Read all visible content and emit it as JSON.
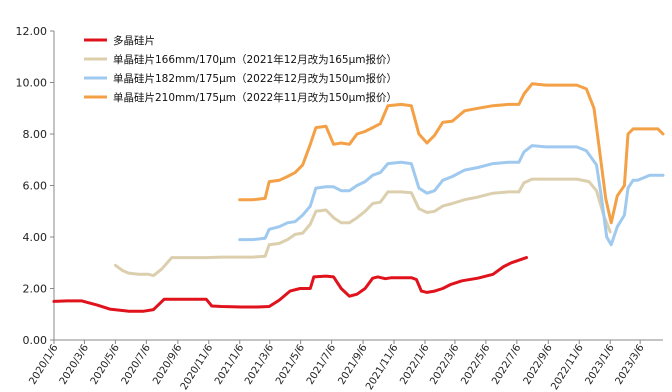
{
  "chart_data": {
    "type": "line",
    "title": "",
    "xlabel": "",
    "ylabel": "",
    "ylim": [
      0,
      12
    ],
    "yticks": [
      "0.00",
      "2.00",
      "4.00",
      "6.00",
      "8.00",
      "10.00",
      "12.00"
    ],
    "grid": false,
    "legend_position": "top-left",
    "x_tick_labels": [
      "2020/1/6",
      "2020/3/6",
      "2020/5/6",
      "2020/7/6",
      "2020/9/6",
      "2020/11/6",
      "2021/1/6",
      "2021/3/6",
      "2021/5/6",
      "2021/7/6",
      "2021/9/6",
      "2021/11/6",
      "2022/1/6",
      "2022/3/6",
      "2022/5/6",
      "2022/7/6",
      "2022/9/6",
      "2022/11/6",
      "2023/1/6",
      "2023/3/6"
    ],
    "x_start": "2020/1/6",
    "x_end": "2023/4/20",
    "series": [
      {
        "name": "多晶硅片",
        "color": "#e0121c",
        "points": [
          [
            "2020/1/6",
            1.5
          ],
          [
            "2020/2/1",
            1.52
          ],
          [
            "2020/3/1",
            1.52
          ],
          [
            "2020/4/1",
            1.35
          ],
          [
            "2020/4/25",
            1.2
          ],
          [
            "2020/6/1",
            1.12
          ],
          [
            "2020/7/1",
            1.12
          ],
          [
            "2020/7/20",
            1.18
          ],
          [
            "2020/8/10",
            1.58
          ],
          [
            "2020/9/1",
            1.58
          ],
          [
            "2020/10/1",
            1.58
          ],
          [
            "2020/11/1",
            1.58
          ],
          [
            "2020/11/12",
            1.32
          ],
          [
            "2020/12/1",
            1.3
          ],
          [
            "2021/1/10",
            1.28
          ],
          [
            "2021/2/10",
            1.28
          ],
          [
            "2021/3/5",
            1.3
          ],
          [
            "2021/3/25",
            1.55
          ],
          [
            "2021/4/15",
            1.9
          ],
          [
            "2021/5/5",
            2.0
          ],
          [
            "2021/5/25",
            2.0
          ],
          [
            "2021/6/1",
            2.45
          ],
          [
            "2021/6/25",
            2.48
          ],
          [
            "2021/7/10",
            2.45
          ],
          [
            "2021/7/25",
            2.0
          ],
          [
            "2021/8/10",
            1.7
          ],
          [
            "2021/8/25",
            1.78
          ],
          [
            "2021/9/10",
            2.0
          ],
          [
            "2021/9/25",
            2.4
          ],
          [
            "2021/10/5",
            2.45
          ],
          [
            "2021/10/20",
            2.38
          ],
          [
            "2021/11/1",
            2.42
          ],
          [
            "2021/11/20",
            2.42
          ],
          [
            "2021/12/10",
            2.42
          ],
          [
            "2021/12/20",
            2.35
          ],
          [
            "2021/12/30",
            1.9
          ],
          [
            "2022/1/10",
            1.85
          ],
          [
            "2022/1/25",
            1.9
          ],
          [
            "2022/2/10",
            2.0
          ],
          [
            "2022/2/25",
            2.15
          ],
          [
            "2022/3/20",
            2.3
          ],
          [
            "2022/4/20",
            2.4
          ],
          [
            "2022/5/20",
            2.55
          ],
          [
            "2022/6/10",
            2.85
          ],
          [
            "2022/6/25",
            3.0
          ],
          [
            "2022/7/10",
            3.1
          ],
          [
            "2022/7/25",
            3.2
          ]
        ]
      },
      {
        "name": "单晶硅片166mm/170μm（2021年12月改为165μm报价）",
        "color": "#dccfae",
        "points": [
          [
            "2020/5/6",
            2.9
          ],
          [
            "2020/5/20",
            2.7
          ],
          [
            "2020/6/1",
            2.6
          ],
          [
            "2020/6/20",
            2.55
          ],
          [
            "2020/7/10",
            2.55
          ],
          [
            "2020/7/20",
            2.5
          ],
          [
            "2020/8/5",
            2.75
          ],
          [
            "2020/8/25",
            3.2
          ],
          [
            "2020/10/1",
            3.2
          ],
          [
            "2020/11/1",
            3.2
          ],
          [
            "2020/12/1",
            3.22
          ],
          [
            "2021/1/1",
            3.22
          ],
          [
            "2021/2/1",
            3.22
          ],
          [
            "2021/2/25",
            3.25
          ],
          [
            "2021/3/5",
            3.7
          ],
          [
            "2021/3/25",
            3.75
          ],
          [
            "2021/4/10",
            3.9
          ],
          [
            "2021/4/25",
            4.1
          ],
          [
            "2021/5/10",
            4.15
          ],
          [
            "2021/5/25",
            4.5
          ],
          [
            "2021/6/5",
            5.0
          ],
          [
            "2021/6/25",
            5.05
          ],
          [
            "2021/7/10",
            4.75
          ],
          [
            "2021/7/25",
            4.55
          ],
          [
            "2021/8/10",
            4.55
          ],
          [
            "2021/8/25",
            4.75
          ],
          [
            "2021/9/10",
            5.0
          ],
          [
            "2021/9/25",
            5.3
          ],
          [
            "2021/10/10",
            5.35
          ],
          [
            "2021/10/25",
            5.75
          ],
          [
            "2021/11/20",
            5.75
          ],
          [
            "2021/12/10",
            5.72
          ],
          [
            "2021/12/25",
            5.1
          ],
          [
            "2022/1/10",
            4.95
          ],
          [
            "2022/1/25",
            5.0
          ],
          [
            "2022/2/10",
            5.2
          ],
          [
            "2022/3/1",
            5.3
          ],
          [
            "2022/3/25",
            5.45
          ],
          [
            "2022/4/20",
            5.55
          ],
          [
            "2022/5/20",
            5.7
          ],
          [
            "2022/6/20",
            5.75
          ],
          [
            "2022/7/10",
            5.75
          ],
          [
            "2022/7/20",
            6.1
          ],
          [
            "2022/8/5",
            6.25
          ],
          [
            "2022/9/1",
            6.25
          ],
          [
            "2022/10/1",
            6.25
          ],
          [
            "2022/11/1",
            6.25
          ],
          [
            "2022/11/25",
            6.15
          ],
          [
            "2022/12/10",
            5.8
          ],
          [
            "2022/12/25",
            4.8
          ],
          [
            "2023/1/6",
            4.2
          ]
        ]
      },
      {
        "name": "单晶硅片182mm/175μm（2022年12月改为150μm报价）",
        "color": "#9fc9ee",
        "points": [
          [
            "2021/1/6",
            3.9
          ],
          [
            "2021/2/1",
            3.9
          ],
          [
            "2021/2/25",
            3.95
          ],
          [
            "2021/3/5",
            4.3
          ],
          [
            "2021/3/25",
            4.4
          ],
          [
            "2021/4/10",
            4.55
          ],
          [
            "2021/4/25",
            4.6
          ],
          [
            "2021/5/10",
            4.85
          ],
          [
            "2021/5/25",
            5.2
          ],
          [
            "2021/6/5",
            5.9
          ],
          [
            "2021/6/25",
            5.95
          ],
          [
            "2021/7/10",
            5.95
          ],
          [
            "2021/7/25",
            5.8
          ],
          [
            "2021/8/10",
            5.8
          ],
          [
            "2021/8/25",
            6.0
          ],
          [
            "2021/9/10",
            6.15
          ],
          [
            "2021/9/25",
            6.4
          ],
          [
            "2021/10/10",
            6.5
          ],
          [
            "2021/10/25",
            6.85
          ],
          [
            "2021/11/20",
            6.9
          ],
          [
            "2021/12/10",
            6.85
          ],
          [
            "2021/12/25",
            5.9
          ],
          [
            "2022/1/10",
            5.7
          ],
          [
            "2022/1/25",
            5.8
          ],
          [
            "2022/2/10",
            6.2
          ],
          [
            "2022/3/1",
            6.35
          ],
          [
            "2022/3/25",
            6.6
          ],
          [
            "2022/4/20",
            6.7
          ],
          [
            "2022/5/20",
            6.85
          ],
          [
            "2022/6/20",
            6.9
          ],
          [
            "2022/7/10",
            6.9
          ],
          [
            "2022/7/20",
            7.3
          ],
          [
            "2022/8/5",
            7.55
          ],
          [
            "2022/9/1",
            7.5
          ],
          [
            "2022/10/1",
            7.5
          ],
          [
            "2022/11/1",
            7.5
          ],
          [
            "2022/11/20",
            7.35
          ],
          [
            "2022/12/10",
            6.8
          ],
          [
            "2022/12/20",
            5.5
          ],
          [
            "2022/12/30",
            4.0
          ],
          [
            "2023/1/8",
            3.7
          ],
          [
            "2023/1/20",
            4.4
          ],
          [
            "2023/2/3",
            4.85
          ],
          [
            "2023/2/10",
            5.9
          ],
          [
            "2023/2/20",
            6.2
          ],
          [
            "2023/3/1",
            6.2
          ],
          [
            "2023/3/25",
            6.4
          ],
          [
            "2023/4/20",
            6.4
          ]
        ]
      },
      {
        "name": "单晶硅片210mm/175μm（2022年11月改为150μm报价）",
        "color": "#f4a046",
        "points": [
          [
            "2021/1/6",
            5.45
          ],
          [
            "2021/2/1",
            5.45
          ],
          [
            "2021/2/25",
            5.5
          ],
          [
            "2021/3/5",
            6.15
          ],
          [
            "2021/3/25",
            6.2
          ],
          [
            "2021/4/10",
            6.35
          ],
          [
            "2021/4/25",
            6.5
          ],
          [
            "2021/5/10",
            6.8
          ],
          [
            "2021/5/25",
            7.6
          ],
          [
            "2021/6/5",
            8.25
          ],
          [
            "2021/6/25",
            8.3
          ],
          [
            "2021/7/10",
            7.6
          ],
          [
            "2021/7/25",
            7.65
          ],
          [
            "2021/8/10",
            7.6
          ],
          [
            "2021/8/25",
            8.0
          ],
          [
            "2021/9/10",
            8.1
          ],
          [
            "2021/9/25",
            8.25
          ],
          [
            "2021/10/10",
            8.4
          ],
          [
            "2021/10/25",
            9.1
          ],
          [
            "2021/11/20",
            9.15
          ],
          [
            "2021/12/10",
            9.1
          ],
          [
            "2021/12/25",
            8.0
          ],
          [
            "2022/1/10",
            7.65
          ],
          [
            "2022/1/25",
            7.95
          ],
          [
            "2022/2/10",
            8.45
          ],
          [
            "2022/3/1",
            8.5
          ],
          [
            "2022/3/25",
            8.9
          ],
          [
            "2022/4/20",
            9.0
          ],
          [
            "2022/5/20",
            9.1
          ],
          [
            "2022/6/20",
            9.15
          ],
          [
            "2022/7/10",
            9.15
          ],
          [
            "2022/7/20",
            9.55
          ],
          [
            "2022/8/5",
            9.95
          ],
          [
            "2022/9/1",
            9.9
          ],
          [
            "2022/10/1",
            9.9
          ],
          [
            "2022/11/1",
            9.9
          ],
          [
            "2022/11/20",
            9.75
          ],
          [
            "2022/12/5",
            9.0
          ],
          [
            "2022/12/15",
            7.5
          ],
          [
            "2022/12/28",
            5.5
          ],
          [
            "2023/1/8",
            4.55
          ],
          [
            "2023/1/20",
            5.6
          ],
          [
            "2023/2/3",
            6.0
          ],
          [
            "2023/2/10",
            8.0
          ],
          [
            "2023/2/20",
            8.2
          ],
          [
            "2023/3/25",
            8.2
          ],
          [
            "2023/4/10",
            8.2
          ],
          [
            "2023/4/20",
            8.0
          ]
        ]
      }
    ]
  }
}
